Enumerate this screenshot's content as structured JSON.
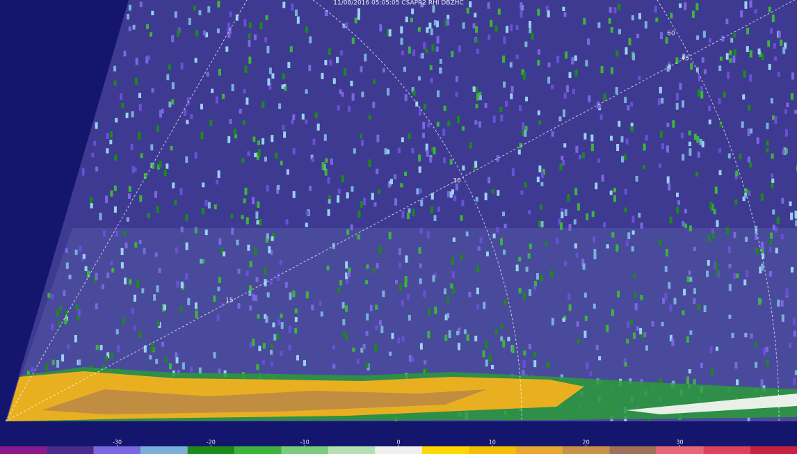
{
  "chart_data": {
    "type": "colorbar",
    "title": "11/08/2016 05:05:05 CSAPR2 RHI DBZHC",
    "range_labels": [
      "15",
      "30",
      "45",
      "60"
    ],
    "bins": [
      -42.5,
      -37.5,
      -32.5,
      -27.5,
      -22.5,
      -17.5,
      -12.5,
      -7.5,
      -2.5,
      2.5,
      7.5,
      12.5,
      17.5,
      22.5,
      27.5,
      32.5,
      37.5,
      42.5
    ],
    "colors": [
      "#8a1a8a",
      "#4a2a8a",
      "#7a68e0",
      "#7ab0d8",
      "#1a8a1a",
      "#3cb43c",
      "#7acc7a",
      "#b4e0b4",
      "#f0f0f0",
      "#ffd800",
      "#f5c000",
      "#e8a830",
      "#c89048",
      "#a07058",
      "#e86878",
      "#e04060",
      "#c82040"
    ],
    "xlim": [
      -42.5,
      42.5
    ],
    "xticks": [
      -30,
      -20,
      -10,
      0,
      10,
      20,
      30
    ]
  }
}
